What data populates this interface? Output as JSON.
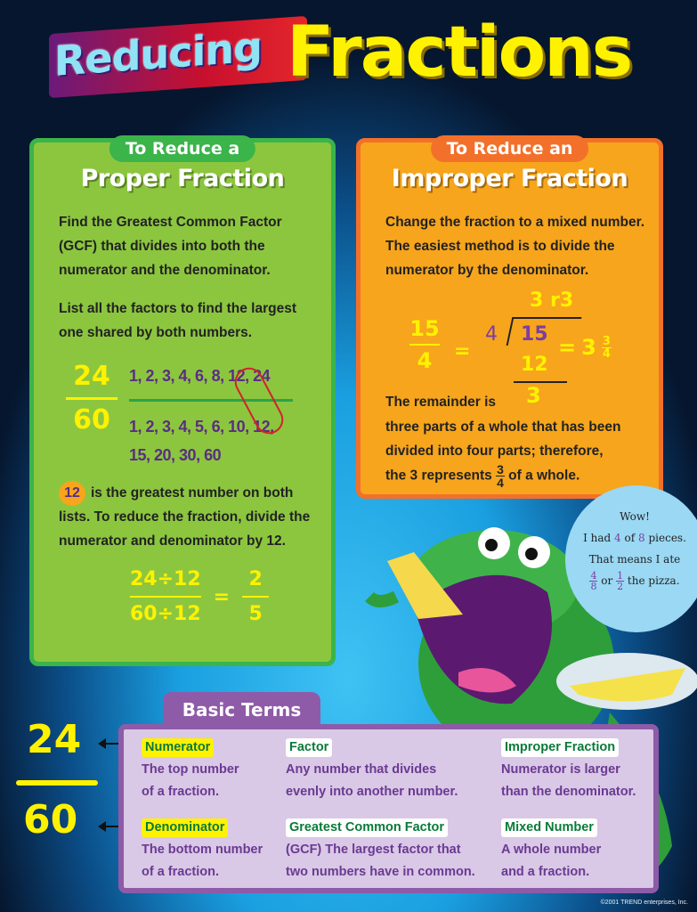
{
  "title": {
    "part1": "Reducing",
    "part2": "Fractions"
  },
  "proper": {
    "pill": "To Reduce a",
    "heading": "Proper Fraction",
    "p1": "Find the Greatest Common Factor (GCF) that divides into both the numerator and the denominator.",
    "p2": "List all the factors to find the largest one shared by both numbers.",
    "numerator": "24",
    "denominator": "60",
    "factors_24": "1, 2, 3, 4, 6, 8, 12, 24",
    "factors_60_line1": "1, 2, 3, 4, 5, 6, 10, 12,",
    "factors_60_line2": "15, 20, 30, 60",
    "gcf_badge": "12",
    "p3": "is the greatest number on both lists. To reduce the fraction, divide the numerator and denominator by 12.",
    "eq_num": "24÷12",
    "eq_den": "60÷12",
    "eq_sign": "=",
    "res_num": "2",
    "res_den": "5"
  },
  "improper": {
    "pill": "To Reduce an",
    "heading": "Improper Fraction",
    "p1": "Change the fraction to a mixed number. The easiest method is to divide the numerator by the denominator.",
    "frac_num": "15",
    "frac_den": "4",
    "eq": "=",
    "quotient": "3 r3",
    "divisor": "4",
    "dividend": "15",
    "subtract": "12",
    "remainder": "3",
    "mixed_whole": "3",
    "mixed_num": "3",
    "mixed_den": "4",
    "p2a": "The remainder is",
    "p2b": "three parts of a whole that has been divided into four parts; therefore,",
    "p3a": "the 3 represents",
    "p3_num": "3",
    "p3_den": "4",
    "p3b": "of a whole."
  },
  "bubble": {
    "l1": "Wow!",
    "l2a": "I had",
    "l2b": "4",
    "l2c": "of",
    "l2d": "8",
    "l2e": "pieces.",
    "l3": "That means I ate",
    "f1n": "4",
    "f1d": "8",
    "or": "or",
    "f2n": "1",
    "f2d": "2",
    "l4": "the pizza."
  },
  "basic_terms": {
    "tab": "Basic Terms",
    "side_num": "24",
    "side_den": "60",
    "items": [
      {
        "label": "Numerator",
        "l1": "The top number",
        "l2": "of a fraction."
      },
      {
        "label": "Factor",
        "l1": "Any number that divides",
        "l2": "evenly into another number."
      },
      {
        "label": "Improper Fraction",
        "l1": "Numerator is larger",
        "l2": "than the denominator."
      },
      {
        "label": "Denominator",
        "l1": "The bottom number",
        "l2": "of a fraction."
      },
      {
        "label": "Greatest Common Factor",
        "l1": "(GCF) The largest factor that",
        "l2": "two numbers have in common."
      },
      {
        "label": "Mixed Number",
        "l1": "A whole number",
        "l2": "and a fraction."
      }
    ]
  },
  "copyright": "©2001 TREND enterprises, Inc.",
  "colors": {
    "green_panel": "#8cc63f",
    "orange_panel": "#f7a51c",
    "terms_panel": "#d9c8e6",
    "chalk_yellow": "#fff200",
    "title_yellow": "#fff200"
  }
}
